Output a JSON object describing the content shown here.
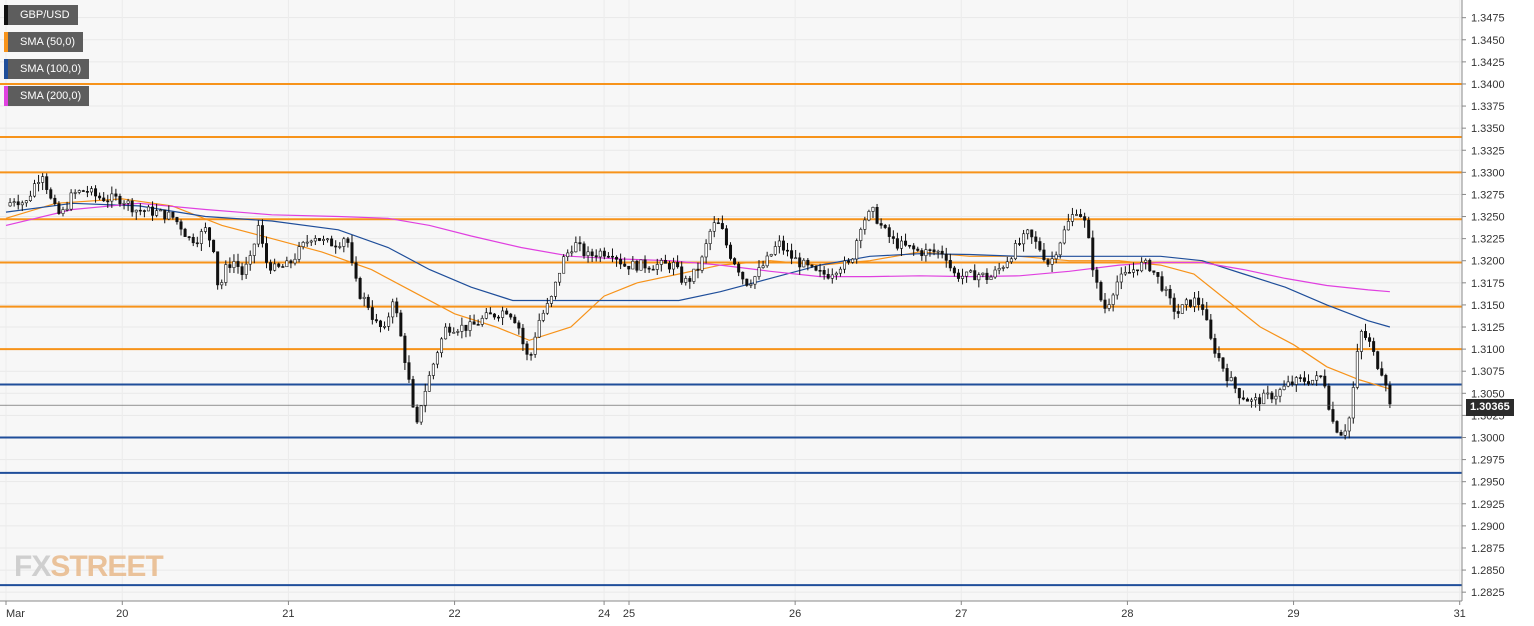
{
  "legend": [
    {
      "label": "GBP/USD",
      "color": "#111111"
    },
    {
      "label": "SMA (50,0)",
      "color": "#f7931a"
    },
    {
      "label": "SMA (100,0)",
      "color": "#1f4e9a"
    },
    {
      "label": "SMA (200,0)",
      "color": "#e040e0"
    }
  ],
  "logo": {
    "fx": "FX",
    "street": "STREET"
  },
  "current_price": "1.30365",
  "chart_data": {
    "type": "candlestick",
    "symbol": "GBP/USD",
    "ylim": [
      1.2815,
      1.3495
    ],
    "yticks": [
      1.2825,
      1.285,
      1.2875,
      1.29,
      1.2925,
      1.295,
      1.2975,
      1.3,
      1.3025,
      1.305,
      1.3075,
      1.31,
      1.3125,
      1.315,
      1.3175,
      1.32,
      1.3225,
      1.325,
      1.3275,
      1.33,
      1.3325,
      1.335,
      1.3375,
      1.34,
      1.3425,
      1.345,
      1.3475
    ],
    "ytick_labels": [
      "1.2825",
      "1.2850",
      "1.2875",
      "1.2900",
      "1.2925",
      "1.2950",
      "1.2975",
      "1.3000",
      "1.3025",
      "1.3050",
      "1.3075",
      "1.3100",
      "1.3125",
      "1.3150",
      "1.3175",
      "1.3200",
      "1.3225",
      "1.3250",
      "1.3275",
      "1.3300",
      "1.3325",
      "1.3350",
      "1.3375",
      "1.3400",
      "1.3425",
      "1.3450",
      "1.3475"
    ],
    "xticks": [
      {
        "label": "Mar",
        "t": 0.0
      },
      {
        "label": "20",
        "t": 0.7
      },
      {
        "label": "21",
        "t": 1.7
      },
      {
        "label": "22",
        "t": 2.7
      },
      {
        "label": "24",
        "t": 3.6
      },
      {
        "label": "25",
        "t": 3.75
      },
      {
        "label": "26",
        "t": 4.75
      },
      {
        "label": "27",
        "t": 5.75
      },
      {
        "label": "28",
        "t": 6.75
      },
      {
        "label": "29",
        "t": 7.75
      },
      {
        "label": "31",
        "t": 8.75
      }
    ],
    "xlim": [
      0.0,
      8.8
    ],
    "horizontal_levels": [
      {
        "value": 1.34,
        "color": "#f7931a"
      },
      {
        "value": 1.334,
        "color": "#f7931a"
      },
      {
        "value": 1.33,
        "color": "#f7931a"
      },
      {
        "value": 1.3247,
        "color": "#f7931a"
      },
      {
        "value": 1.3198,
        "color": "#f7931a"
      },
      {
        "value": 1.3148,
        "color": "#f7931a"
      },
      {
        "value": 1.31,
        "color": "#f7931a"
      },
      {
        "value": 1.306,
        "color": "#1f4e9a"
      },
      {
        "value": 1.3,
        "color": "#1f4e9a"
      },
      {
        "value": 1.296,
        "color": "#1f4e9a"
      },
      {
        "value": 1.2833,
        "color": "#1f4e9a"
      }
    ],
    "current_price_level": 1.30365,
    "price_path": [
      [
        0.0,
        1.3262
      ],
      [
        0.05,
        1.327
      ],
      [
        0.12,
        1.3265
      ],
      [
        0.18,
        1.329
      ],
      [
        0.22,
        1.33
      ],
      [
        0.28,
        1.3262
      ],
      [
        0.33,
        1.325
      ],
      [
        0.4,
        1.3275
      ],
      [
        0.48,
        1.328
      ],
      [
        0.55,
        1.3272
      ],
      [
        0.62,
        1.327
      ],
      [
        0.7,
        1.327
      ],
      [
        0.78,
        1.3258
      ],
      [
        0.9,
        1.3255
      ],
      [
        1.0,
        1.325
      ],
      [
        1.05,
        1.324
      ],
      [
        1.1,
        1.3225
      ],
      [
        1.15,
        1.3225
      ],
      [
        1.2,
        1.3235
      ],
      [
        1.25,
        1.3215
      ],
      [
        1.28,
        1.3165
      ],
      [
        1.33,
        1.3195
      ],
      [
        1.38,
        1.32
      ],
      [
        1.42,
        1.3185
      ],
      [
        1.47,
        1.32
      ],
      [
        1.52,
        1.324
      ],
      [
        1.56,
        1.32
      ],
      [
        1.62,
        1.319
      ],
      [
        1.7,
        1.3195
      ],
      [
        1.78,
        1.3215
      ],
      [
        1.85,
        1.323
      ],
      [
        1.92,
        1.322
      ],
      [
        2.0,
        1.322
      ],
      [
        2.05,
        1.323
      ],
      [
        2.08,
        1.3195
      ],
      [
        2.12,
        1.3165
      ],
      [
        2.18,
        1.315
      ],
      [
        2.22,
        1.313
      ],
      [
        2.28,
        1.312
      ],
      [
        2.33,
        1.316
      ],
      [
        2.38,
        1.311
      ],
      [
        2.42,
        1.307
      ],
      [
        2.45,
        1.303
      ],
      [
        2.47,
        1.3008
      ],
      [
        2.5,
        1.304
      ],
      [
        2.55,
        1.307
      ],
      [
        2.6,
        1.31
      ],
      [
        2.65,
        1.3125
      ],
      [
        2.72,
        1.3125
      ],
      [
        2.8,
        1.3125
      ],
      [
        2.88,
        1.3135
      ],
      [
        2.95,
        1.314
      ],
      [
        3.02,
        1.3145
      ],
      [
        3.08,
        1.313
      ],
      [
        3.12,
        1.31
      ],
      [
        3.15,
        1.3085
      ],
      [
        3.2,
        1.313
      ],
      [
        3.28,
        1.3155
      ],
      [
        3.35,
        1.32
      ],
      [
        3.42,
        1.322
      ],
      [
        3.5,
        1.3205
      ],
      [
        3.58,
        1.321
      ],
      [
        3.65,
        1.321
      ],
      [
        3.72,
        1.3195
      ],
      [
        3.8,
        1.3195
      ],
      [
        3.88,
        1.3195
      ],
      [
        3.95,
        1.3195
      ],
      [
        4.02,
        1.3195
      ],
      [
        4.08,
        1.3175
      ],
      [
        4.12,
        1.318
      ],
      [
        4.18,
        1.3195
      ],
      [
        4.25,
        1.324
      ],
      [
        4.3,
        1.324
      ],
      [
        4.35,
        1.321
      ],
      [
        4.4,
        1.3195
      ],
      [
        4.45,
        1.3175
      ],
      [
        4.5,
        1.318
      ],
      [
        4.58,
        1.32
      ],
      [
        4.65,
        1.322
      ],
      [
        4.72,
        1.3205
      ],
      [
        4.8,
        1.3195
      ],
      [
        4.88,
        1.3185
      ],
      [
        4.95,
        1.3185
      ],
      [
        5.02,
        1.3195
      ],
      [
        5.08,
        1.3195
      ],
      [
        5.15,
        1.3245
      ],
      [
        5.22,
        1.3255
      ],
      [
        5.28,
        1.3235
      ],
      [
        5.35,
        1.322
      ],
      [
        5.42,
        1.3215
      ],
      [
        5.5,
        1.321
      ],
      [
        5.58,
        1.321
      ],
      [
        5.65,
        1.321
      ],
      [
        5.7,
        1.3185
      ],
      [
        5.78,
        1.3182
      ],
      [
        5.85,
        1.3185
      ],
      [
        5.92,
        1.318
      ],
      [
        6.0,
        1.3195
      ],
      [
        6.08,
        1.3215
      ],
      [
        6.15,
        1.323
      ],
      [
        6.22,
        1.3215
      ],
      [
        6.28,
        1.3195
      ],
      [
        6.35,
        1.3225
      ],
      [
        6.4,
        1.3245
      ],
      [
        6.45,
        1.326
      ],
      [
        6.5,
        1.324
      ],
      [
        6.55,
        1.3185
      ],
      [
        6.58,
        1.316
      ],
      [
        6.62,
        1.3145
      ],
      [
        6.68,
        1.3175
      ],
      [
        6.75,
        1.3185
      ],
      [
        6.82,
        1.3195
      ],
      [
        6.88,
        1.3195
      ],
      [
        6.95,
        1.3175
      ],
      [
        7.0,
        1.3155
      ],
      [
        7.05,
        1.314
      ],
      [
        7.1,
        1.315
      ],
      [
        7.15,
        1.3155
      ],
      [
        7.2,
        1.315
      ],
      [
        7.25,
        1.311
      ],
      [
        7.3,
        1.309
      ],
      [
        7.35,
        1.307
      ],
      [
        7.42,
        1.305
      ],
      [
        7.5,
        1.304
      ],
      [
        7.58,
        1.3045
      ],
      [
        7.65,
        1.305
      ],
      [
        7.72,
        1.306
      ],
      [
        7.8,
        1.3065
      ],
      [
        7.88,
        1.3065
      ],
      [
        7.93,
        1.307
      ],
      [
        7.98,
        1.302
      ],
      [
        8.03,
        1.3005
      ],
      [
        8.08,
        1.3015
      ],
      [
        8.12,
        1.307
      ],
      [
        8.15,
        1.312
      ],
      [
        8.2,
        1.311
      ],
      [
        8.25,
        1.3085
      ],
      [
        8.3,
        1.307
      ],
      [
        8.33,
        1.3036
      ]
    ],
    "sma50_color": "#f7931a",
    "sma50": [
      [
        0.0,
        1.3248
      ],
      [
        0.3,
        1.3265
      ],
      [
        0.7,
        1.327
      ],
      [
        1.0,
        1.3262
      ],
      [
        1.3,
        1.324
      ],
      [
        1.6,
        1.3225
      ],
      [
        1.9,
        1.321
      ],
      [
        2.2,
        1.319
      ],
      [
        2.45,
        1.3165
      ],
      [
        2.7,
        1.314
      ],
      [
        2.95,
        1.3125
      ],
      [
        3.15,
        1.311
      ],
      [
        3.4,
        1.3125
      ],
      [
        3.6,
        1.316
      ],
      [
        3.8,
        1.3175
      ],
      [
        4.05,
        1.3185
      ],
      [
        4.3,
        1.3195
      ],
      [
        4.6,
        1.32
      ],
      [
        4.9,
        1.3195
      ],
      [
        5.2,
        1.32
      ],
      [
        5.5,
        1.321
      ],
      [
        5.8,
        1.3205
      ],
      [
        6.1,
        1.3205
      ],
      [
        6.4,
        1.32
      ],
      [
        6.7,
        1.32
      ],
      [
        6.95,
        1.3195
      ],
      [
        7.15,
        1.3185
      ],
      [
        7.35,
        1.3155
      ],
      [
        7.55,
        1.3125
      ],
      [
        7.75,
        1.3105
      ],
      [
        7.95,
        1.308
      ],
      [
        8.15,
        1.3065
      ],
      [
        8.33,
        1.3055
      ]
    ],
    "sma100_color": "#1f4e9a",
    "sma100": [
      [
        0.0,
        1.3255
      ],
      [
        0.4,
        1.3265
      ],
      [
        0.8,
        1.3262
      ],
      [
        1.2,
        1.325
      ],
      [
        1.6,
        1.3245
      ],
      [
        2.0,
        1.3235
      ],
      [
        2.3,
        1.3215
      ],
      [
        2.55,
        1.319
      ],
      [
        2.8,
        1.317
      ],
      [
        3.05,
        1.3155
      ],
      [
        3.35,
        1.3155
      ],
      [
        3.7,
        1.3155
      ],
      [
        4.05,
        1.3155
      ],
      [
        4.3,
        1.3165
      ],
      [
        4.6,
        1.318
      ],
      [
        4.9,
        1.3195
      ],
      [
        5.2,
        1.3205
      ],
      [
        5.5,
        1.3208
      ],
      [
        5.8,
        1.3207
      ],
      [
        6.1,
        1.3205
      ],
      [
        6.4,
        1.3205
      ],
      [
        6.7,
        1.3205
      ],
      [
        6.95,
        1.3205
      ],
      [
        7.2,
        1.32
      ],
      [
        7.45,
        1.3185
      ],
      [
        7.7,
        1.317
      ],
      [
        7.95,
        1.315
      ],
      [
        8.2,
        1.3132
      ],
      [
        8.33,
        1.3125
      ]
    ],
    "sma200_color": "#e040e0",
    "sma200": [
      [
        0.0,
        1.324
      ],
      [
        0.4,
        1.3258
      ],
      [
        0.8,
        1.3265
      ],
      [
        1.2,
        1.3258
      ],
      [
        1.6,
        1.3252
      ],
      [
        2.0,
        1.325
      ],
      [
        2.3,
        1.3248
      ],
      [
        2.55,
        1.324
      ],
      [
        2.8,
        1.3228
      ],
      [
        3.1,
        1.3215
      ],
      [
        3.4,
        1.3205
      ],
      [
        3.7,
        1.3202
      ],
      [
        4.0,
        1.32
      ],
      [
        4.3,
        1.3195
      ],
      [
        4.6,
        1.3188
      ],
      [
        4.9,
        1.3182
      ],
      [
        5.2,
        1.3182
      ],
      [
        5.5,
        1.3183
      ],
      [
        5.8,
        1.3182
      ],
      [
        6.1,
        1.3183
      ],
      [
        6.4,
        1.3188
      ],
      [
        6.7,
        1.3195
      ],
      [
        6.95,
        1.3198
      ],
      [
        7.2,
        1.3198
      ],
      [
        7.45,
        1.319
      ],
      [
        7.7,
        1.318
      ],
      [
        7.95,
        1.3172
      ],
      [
        8.2,
        1.3167
      ],
      [
        8.33,
        1.3165
      ]
    ]
  }
}
